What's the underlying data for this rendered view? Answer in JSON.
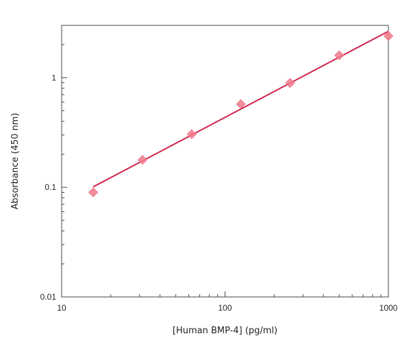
{
  "chart_data": {
    "type": "scatter",
    "title": "",
    "xlabel": "[Human BMP-4] (pg/ml)",
    "ylabel": "Absorbance (450 nm)",
    "x_scale": "log",
    "y_scale": "log",
    "xlim": [
      10,
      1000
    ],
    "ylim": [
      0.01,
      3
    ],
    "x_ticks": [
      10,
      100,
      1000
    ],
    "x_tick_labels": [
      "10",
      "100",
      "1000"
    ],
    "y_ticks": [
      0.01,
      0.1,
      1
    ],
    "y_tick_labels": [
      "0.01",
      "0.1",
      "1"
    ],
    "grid": false,
    "series": [
      {
        "kind": "points",
        "marker": "diamond",
        "color": "#f07a8c",
        "x": [
          15.6,
          31.25,
          62.5,
          125,
          250,
          500,
          1000
        ],
        "y": [
          0.09,
          0.178,
          0.305,
          0.575,
          0.895,
          1.6,
          2.4
        ]
      },
      {
        "kind": "fit-line",
        "color": "#d0234b",
        "x": [
          15.6,
          1000
        ],
        "y": [
          0.101,
          2.65
        ]
      }
    ]
  }
}
